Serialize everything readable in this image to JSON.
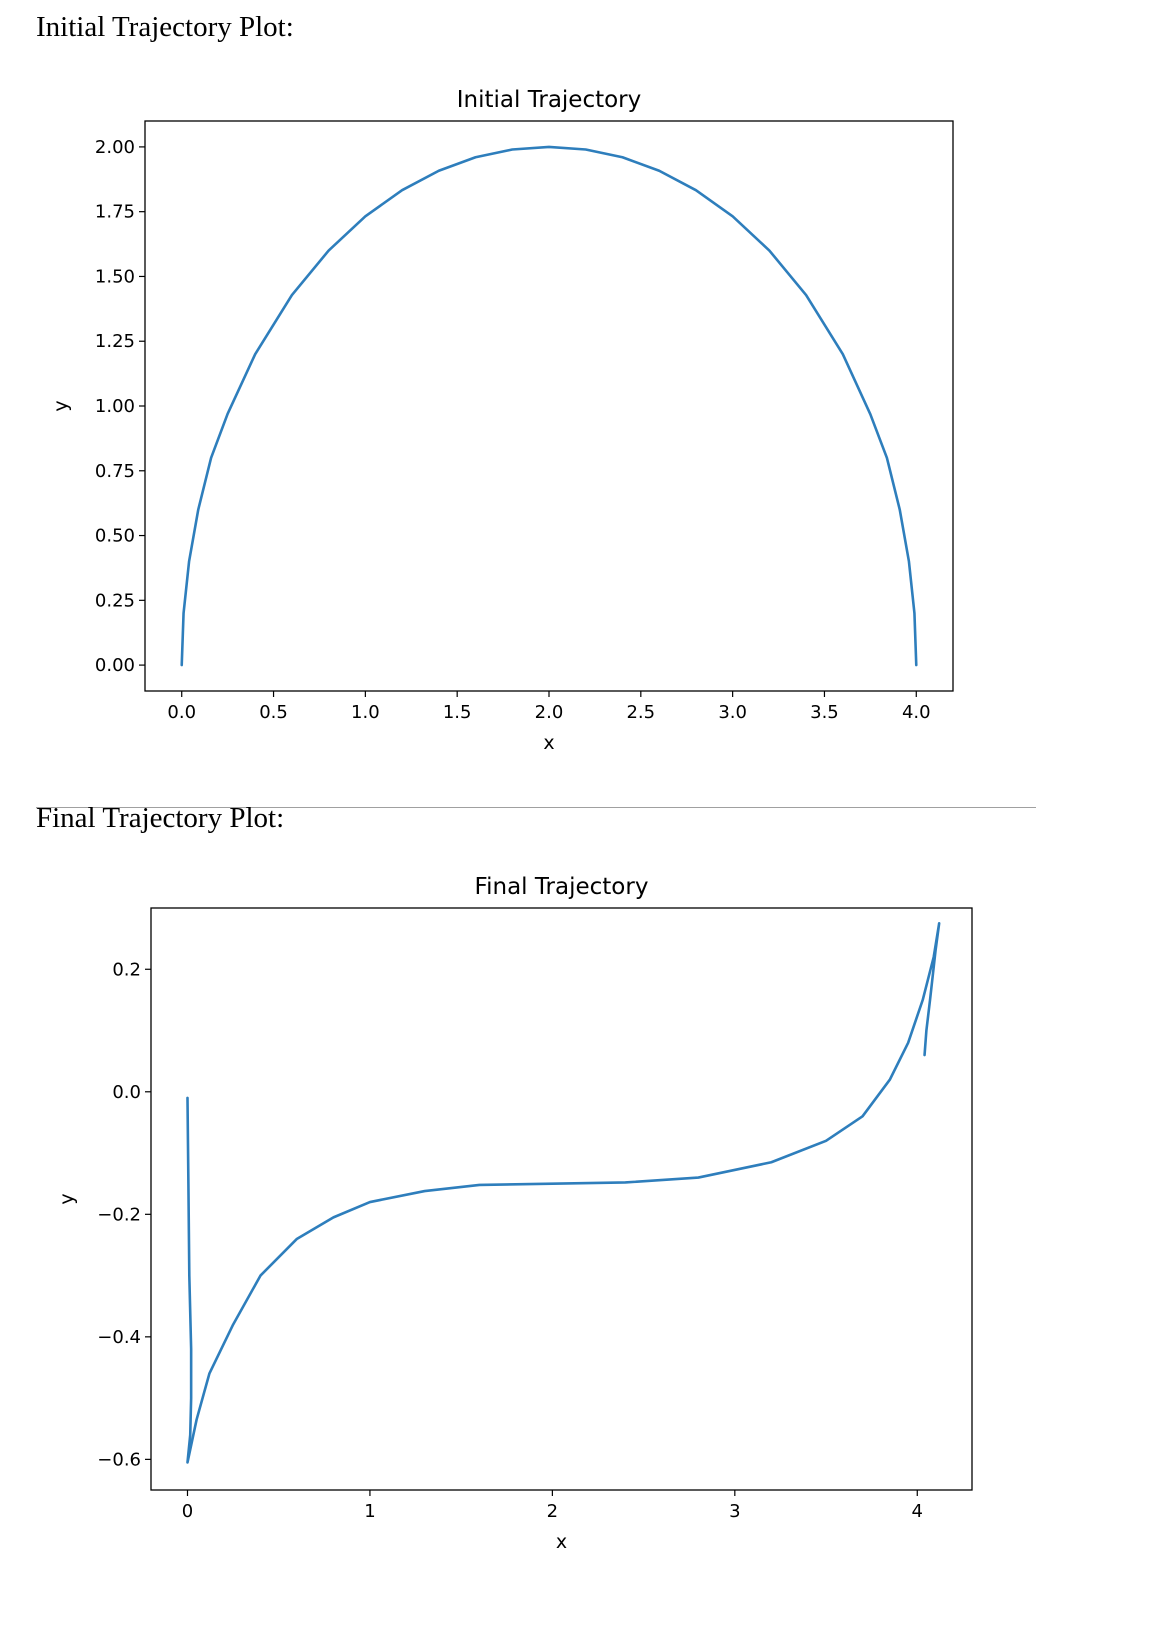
{
  "headings": {
    "first": "Initial Trajectory Plot:",
    "second": "Final Trajectory Plot:"
  },
  "line_color": "#2e7ebc",
  "chart_data": [
    {
      "type": "line",
      "title": "Initial Trajectory",
      "xlabel": "x",
      "ylabel": "y",
      "xlim": [
        -0.2,
        4.2
      ],
      "ylim": [
        -0.1,
        2.1
      ],
      "xticks": [
        0.0,
        0.5,
        1.0,
        1.5,
        2.0,
        2.5,
        3.0,
        3.5,
        4.0
      ],
      "xtick_labels": [
        "0.0",
        "0.5",
        "1.0",
        "1.5",
        "2.0",
        "2.5",
        "3.0",
        "3.5",
        "4.0"
      ],
      "yticks": [
        0.0,
        0.25,
        0.5,
        0.75,
        1.0,
        1.25,
        1.5,
        1.75,
        2.0
      ],
      "ytick_labels": [
        "0.00",
        "0.25",
        "0.50",
        "0.75",
        "1.00",
        "1.25",
        "1.50",
        "1.75",
        "2.00"
      ],
      "grid": false,
      "series": [
        {
          "x": [
            0.0,
            0.01,
            0.04,
            0.09,
            0.16,
            0.25,
            0.4,
            0.6,
            0.8,
            1.0,
            1.2,
            1.4,
            1.6,
            1.8,
            2.0,
            2.2,
            2.4,
            2.6,
            2.8,
            3.0,
            3.2,
            3.4,
            3.6,
            3.75,
            3.84,
            3.91,
            3.96,
            3.99,
            4.0
          ],
          "y": [
            0.0,
            0.2,
            0.4,
            0.6,
            0.8,
            0.97,
            1.2,
            1.428,
            1.6,
            1.732,
            1.833,
            1.908,
            1.96,
            1.99,
            2.0,
            1.99,
            1.96,
            1.908,
            1.833,
            1.732,
            1.6,
            1.428,
            1.2,
            0.968,
            0.8,
            0.6,
            0.4,
            0.2,
            0.0
          ]
        }
      ]
    },
    {
      "type": "line",
      "title": "Final Trajectory",
      "xlabel": "x",
      "ylabel": "y",
      "xlim": [
        -0.2,
        4.3
      ],
      "ylim": [
        -0.65,
        0.3
      ],
      "xticks": [
        0,
        1,
        2,
        3,
        4
      ],
      "xtick_labels": [
        "0",
        "1",
        "2",
        "3",
        "4"
      ],
      "yticks": [
        0.2,
        0.0,
        -0.2,
        -0.4,
        -0.6
      ],
      "ytick_labels": [
        "0.2",
        "0.0",
        "−0.2",
        "−0.4",
        "−0.6"
      ],
      "grid": false,
      "series": [
        {
          "x": [
            0.0,
            0.005,
            0.01,
            0.02,
            0.02,
            0.015,
            0.0,
            0.05,
            0.12,
            0.25,
            0.4,
            0.6,
            0.8,
            1.0,
            1.3,
            1.6,
            2.0,
            2.4,
            2.8,
            3.2,
            3.5,
            3.7,
            3.85,
            3.95,
            4.03,
            4.09,
            4.12,
            4.1,
            4.07,
            4.05,
            4.04
          ],
          "y": [
            -0.01,
            -0.15,
            -0.3,
            -0.42,
            -0.5,
            -0.56,
            -0.605,
            -0.535,
            -0.46,
            -0.38,
            -0.3,
            -0.24,
            -0.205,
            -0.18,
            -0.162,
            -0.152,
            -0.15,
            -0.148,
            -0.14,
            -0.115,
            -0.08,
            -0.04,
            0.02,
            0.08,
            0.15,
            0.22,
            0.275,
            0.23,
            0.15,
            0.1,
            0.06
          ]
        }
      ]
    }
  ]
}
